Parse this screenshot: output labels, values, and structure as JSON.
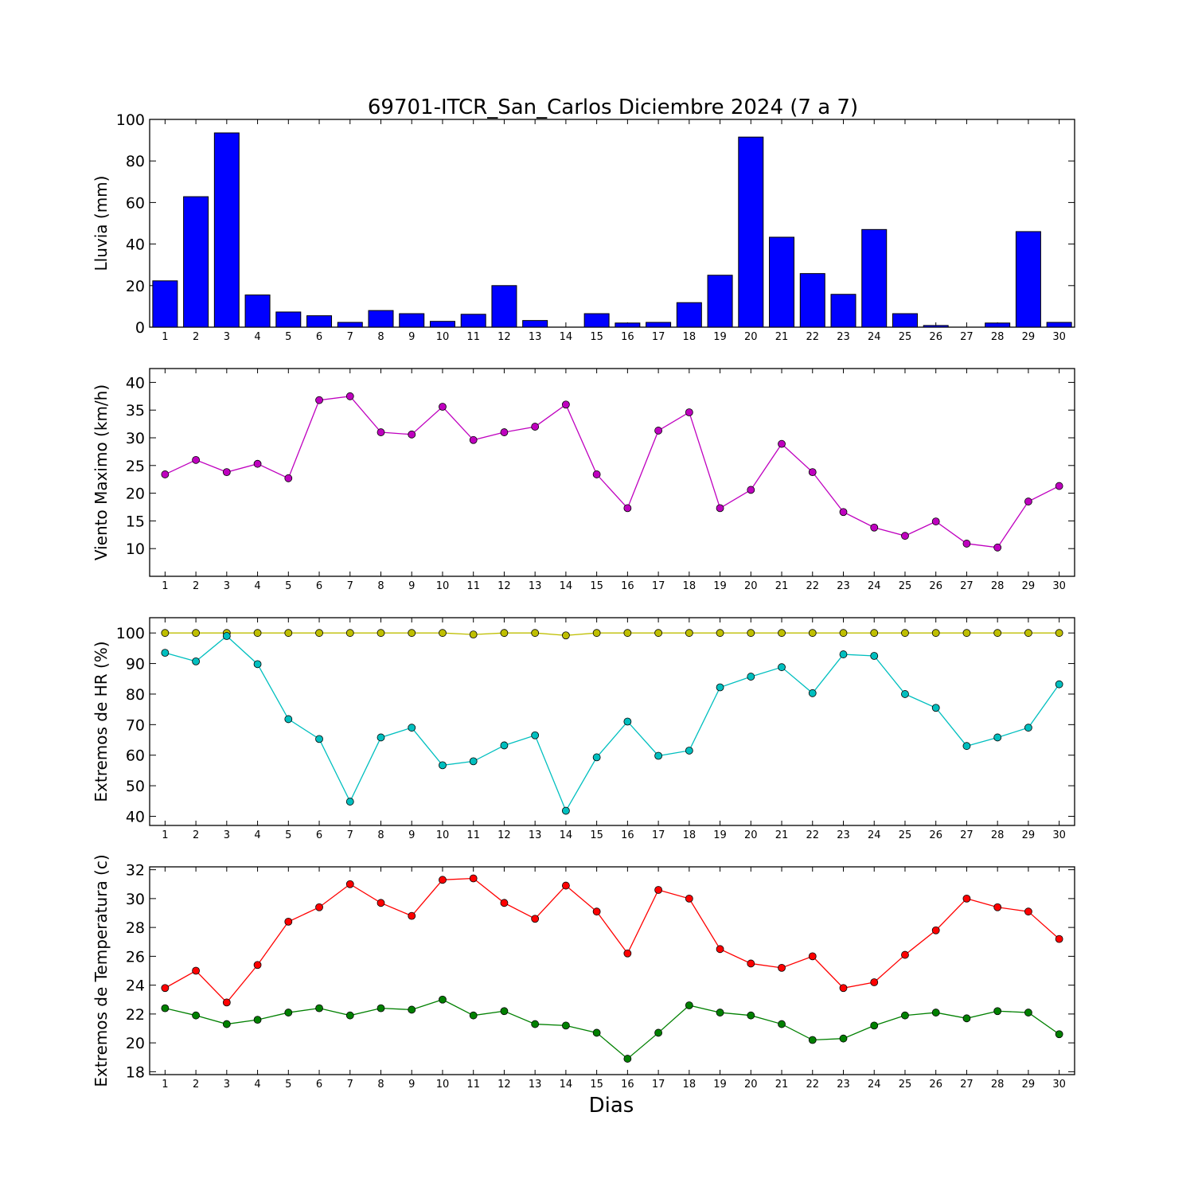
{
  "figure": {
    "title": "69701-ITCR_San_Carlos Diciembre 2024  (7 a 7)",
    "xlabel": "Dias"
  },
  "chart_data": [
    {
      "type": "bar",
      "ylabel": "Lluvia (mm)",
      "ylim": [
        0,
        100
      ],
      "yticks": [
        0,
        20,
        40,
        60,
        80,
        100
      ],
      "grid": false,
      "categories": [
        "1",
        "2",
        "3",
        "4",
        "5",
        "6",
        "7",
        "8",
        "9",
        "10",
        "11",
        "12",
        "13",
        "14",
        "15",
        "16",
        "17",
        "18",
        "19",
        "20",
        "21",
        "22",
        "23",
        "24",
        "25",
        "26",
        "27",
        "28",
        "29",
        "30"
      ],
      "series": [
        {
          "color": "#0000ff",
          "values": [
            22.3,
            62.8,
            93.5,
            15.5,
            7.3,
            5.5,
            2.3,
            8.0,
            6.5,
            2.8,
            6.2,
            20.0,
            3.2,
            0.0,
            6.5,
            2.0,
            2.3,
            11.8,
            25.0,
            91.5,
            43.3,
            25.8,
            15.8,
            47.0,
            6.5,
            0.8,
            0.0,
            2.0,
            46.0,
            2.3
          ]
        }
      ]
    },
    {
      "type": "line",
      "ylabel": "Viento Maximo (km/h)",
      "ylim": [
        5,
        42.5
      ],
      "yticks": [
        10,
        15,
        20,
        25,
        30,
        35,
        40
      ],
      "grid": false,
      "categories": [
        "1",
        "2",
        "3",
        "4",
        "5",
        "6",
        "7",
        "8",
        "9",
        "10",
        "11",
        "12",
        "13",
        "14",
        "15",
        "16",
        "17",
        "18",
        "19",
        "20",
        "21",
        "22",
        "23",
        "24",
        "25",
        "26",
        "27",
        "28",
        "29",
        "30"
      ],
      "series": [
        {
          "color": "#bf00bf",
          "values": [
            23.4,
            26.0,
            23.8,
            25.3,
            22.7,
            36.8,
            37.5,
            31.0,
            30.6,
            35.6,
            29.6,
            31.0,
            32.0,
            36.0,
            23.4,
            17.3,
            31.3,
            34.6,
            17.3,
            20.6,
            28.9,
            23.8,
            16.6,
            13.8,
            12.3,
            14.9,
            10.9,
            10.2,
            18.5,
            21.3
          ]
        }
      ]
    },
    {
      "type": "line",
      "ylabel": "Extremos de HR (%)",
      "ylim": [
        37,
        105
      ],
      "yticks": [
        40,
        50,
        60,
        70,
        80,
        90,
        100
      ],
      "grid": false,
      "categories": [
        "1",
        "2",
        "3",
        "4",
        "5",
        "6",
        "7",
        "8",
        "9",
        "10",
        "11",
        "12",
        "13",
        "14",
        "15",
        "16",
        "17",
        "18",
        "19",
        "20",
        "21",
        "22",
        "23",
        "24",
        "25",
        "26",
        "27",
        "28",
        "29",
        "30"
      ],
      "series": [
        {
          "color": "#bfbf00",
          "values": [
            100,
            100,
            100,
            100,
            100,
            100,
            100,
            100,
            100,
            100,
            99.5,
            100,
            100,
            99.2,
            100,
            100,
            100,
            100,
            100,
            100,
            100,
            100,
            100,
            100,
            100,
            100,
            100,
            100,
            100,
            100
          ]
        },
        {
          "color": "#00bfbf",
          "values": [
            93.5,
            90.7,
            99.0,
            89.8,
            71.8,
            65.3,
            44.8,
            65.8,
            69.0,
            56.7,
            58.0,
            63.2,
            66.5,
            41.8,
            59.3,
            71.0,
            59.8,
            61.5,
            82.2,
            85.7,
            88.8,
            80.3,
            93.0,
            92.5,
            80.0,
            75.5,
            63.0,
            65.8,
            69.0,
            83.2
          ]
        }
      ]
    },
    {
      "type": "line",
      "ylabel": "Extremos de Temperatura (c)",
      "ylim": [
        17.8,
        32.2
      ],
      "yticks": [
        18,
        20,
        22,
        24,
        26,
        28,
        30,
        32
      ],
      "grid": false,
      "categories": [
        "1",
        "2",
        "3",
        "4",
        "5",
        "6",
        "7",
        "8",
        "9",
        "10",
        "11",
        "12",
        "13",
        "14",
        "15",
        "16",
        "17",
        "18",
        "19",
        "20",
        "21",
        "22",
        "23",
        "24",
        "25",
        "26",
        "27",
        "28",
        "29",
        "30"
      ],
      "series": [
        {
          "color": "#ff0000",
          "values": [
            23.8,
            25.0,
            22.8,
            25.4,
            28.4,
            29.4,
            31.0,
            29.7,
            28.8,
            31.3,
            31.4,
            29.7,
            28.6,
            30.9,
            29.1,
            26.2,
            30.6,
            30.0,
            26.5,
            25.5,
            25.2,
            26.0,
            23.8,
            24.2,
            26.1,
            27.8,
            30.0,
            29.4,
            29.1,
            27.2
          ]
        },
        {
          "color": "#008000",
          "values": [
            22.4,
            21.9,
            21.3,
            21.6,
            22.1,
            22.4,
            21.9,
            22.4,
            22.3,
            23.0,
            21.9,
            22.2,
            21.3,
            21.2,
            20.7,
            18.9,
            20.7,
            22.6,
            22.1,
            21.9,
            21.3,
            20.2,
            20.3,
            21.2,
            21.9,
            22.1,
            21.7,
            22.2,
            22.1,
            20.6
          ]
        }
      ]
    }
  ]
}
